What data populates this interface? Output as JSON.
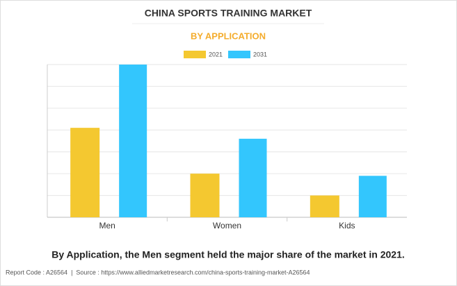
{
  "chart_data": {
    "type": "bar",
    "title": "CHINA SPORTS TRAINING MARKET",
    "subtitle": "BY APPLICATION",
    "categories": [
      "Men",
      "Women",
      "Kids"
    ],
    "series": [
      {
        "name": "2021",
        "color": "#f4c830",
        "values": [
          4.1,
          2.0,
          1.0
        ]
      },
      {
        "name": "2031",
        "color": "#33c6fd",
        "values": [
          7.0,
          3.6,
          1.9
        ]
      }
    ],
    "ylim": [
      0,
      7
    ],
    "yticks": [
      0,
      1,
      2,
      3,
      4,
      5,
      6,
      7
    ],
    "grid": true
  },
  "caption": "By Application, the Men segment held the major share of the market in 2021.",
  "footer": "Report Code : A26564  |  Source : https://www.alliedmarketresearch.com/china-sports-training-market-A26564"
}
